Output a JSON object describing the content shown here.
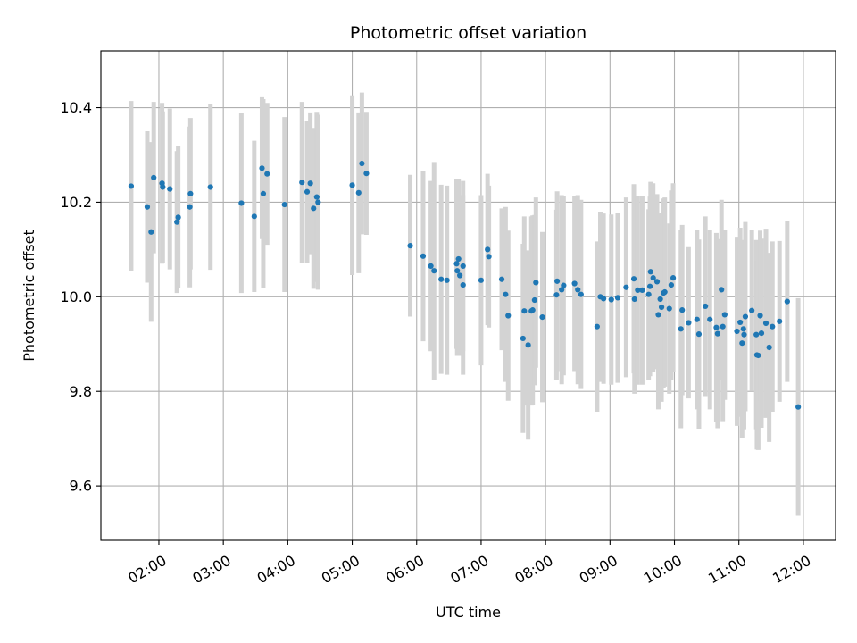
{
  "chart_data": {
    "type": "scatter",
    "title": "Photometric offset variation",
    "xlabel": "UTC time",
    "ylabel": "Photometric offset",
    "x_unit": "UTC hours",
    "xlim": [
      1.1,
      12.5
    ],
    "ylim": [
      9.485,
      10.52
    ],
    "x_ticks": [
      {
        "value": 2,
        "label": "02:00"
      },
      {
        "value": 3,
        "label": "03:00"
      },
      {
        "value": 4,
        "label": "04:00"
      },
      {
        "value": 5,
        "label": "05:00"
      },
      {
        "value": 6,
        "label": "06:00"
      },
      {
        "value": 7,
        "label": "07:00"
      },
      {
        "value": 8,
        "label": "08:00"
      },
      {
        "value": 9,
        "label": "09:00"
      },
      {
        "value": 10,
        "label": "10:00"
      },
      {
        "value": 11,
        "label": "11:00"
      },
      {
        "value": 12,
        "label": "12:00"
      }
    ],
    "y_ticks": [
      {
        "value": 9.6,
        "label": "9.6"
      },
      {
        "value": 9.8,
        "label": "9.8"
      },
      {
        "value": 10.0,
        "label": "10.0"
      },
      {
        "value": 10.2,
        "label": "10.2"
      },
      {
        "value": 10.4,
        "label": "10.4"
      }
    ],
    "grid": true,
    "colors": {
      "point": "#1f77b4",
      "errorbar": "#d3d3d3",
      "grid": "#b0b0b0"
    },
    "points": [
      [
        1.57,
        10.234,
        0.18
      ],
      [
        1.82,
        10.19,
        0.16
      ],
      [
        1.88,
        10.137,
        0.19
      ],
      [
        1.92,
        10.252,
        0.16
      ],
      [
        2.05,
        10.24,
        0.17
      ],
      [
        2.06,
        10.232,
        0.16
      ],
      [
        2.17,
        10.228,
        0.17
      ],
      [
        2.28,
        10.158,
        0.15
      ],
      [
        2.3,
        10.168,
        0.15
      ],
      [
        2.48,
        10.19,
        0.17
      ],
      [
        2.49,
        10.218,
        0.16
      ],
      [
        2.8,
        10.232,
        0.175
      ],
      [
        3.28,
        10.198,
        0.19
      ],
      [
        3.48,
        10.17,
        0.16
      ],
      [
        3.6,
        10.272,
        0.15
      ],
      [
        3.62,
        10.218,
        0.2
      ],
      [
        3.68,
        10.26,
        0.15
      ],
      [
        3.95,
        10.195,
        0.185
      ],
      [
        4.22,
        10.242,
        0.17
      ],
      [
        4.3,
        10.222,
        0.15
      ],
      [
        4.35,
        10.24,
        0.15
      ],
      [
        4.4,
        10.187,
        0.17
      ],
      [
        4.45,
        10.211,
        0.18
      ],
      [
        4.47,
        10.2,
        0.185
      ],
      [
        5.0,
        10.236,
        0.19
      ],
      [
        5.1,
        10.22,
        0.17
      ],
      [
        5.15,
        10.282,
        0.15
      ],
      [
        5.22,
        10.261,
        0.13
      ],
      [
        5.9,
        10.108,
        0.15
      ],
      [
        6.1,
        10.086,
        0.18
      ],
      [
        6.22,
        10.065,
        0.18
      ],
      [
        6.27,
        10.055,
        0.23
      ],
      [
        6.38,
        10.037,
        0.2
      ],
      [
        6.47,
        10.035,
        0.2
      ],
      [
        6.62,
        10.07,
        0.18
      ],
      [
        6.63,
        10.055,
        0.18
      ],
      [
        6.65,
        10.08,
        0.17
      ],
      [
        6.67,
        10.045,
        0.17
      ],
      [
        6.72,
        10.025,
        0.19
      ],
      [
        6.72,
        10.065,
        0.18
      ],
      [
        7.0,
        10.035,
        0.18
      ],
      [
        7.1,
        10.1,
        0.16
      ],
      [
        7.12,
        10.085,
        0.15
      ],
      [
        7.32,
        10.037,
        0.15
      ],
      [
        7.38,
        10.005,
        0.185
      ],
      [
        7.42,
        9.96,
        0.18
      ],
      [
        7.65,
        9.912,
        0.2
      ],
      [
        7.67,
        9.97,
        0.2
      ],
      [
        7.73,
        9.898,
        0.2
      ],
      [
        7.78,
        9.97,
        0.2
      ],
      [
        7.8,
        9.972,
        0.2
      ],
      [
        7.83,
        9.993,
        0.18
      ],
      [
        7.85,
        10.03,
        0.18
      ],
      [
        7.95,
        9.957,
        0.18
      ],
      [
        8.17,
        10.004,
        0.18
      ],
      [
        8.18,
        10.033,
        0.19
      ],
      [
        8.25,
        10.015,
        0.2
      ],
      [
        8.28,
        10.024,
        0.19
      ],
      [
        8.45,
        10.028,
        0.185
      ],
      [
        8.5,
        10.015,
        0.2
      ],
      [
        8.55,
        10.005,
        0.2
      ],
      [
        8.8,
        9.937,
        0.18
      ],
      [
        8.85,
        10.0,
        0.18
      ],
      [
        8.9,
        9.996,
        0.18
      ],
      [
        9.02,
        9.994,
        0.18
      ],
      [
        9.12,
        9.998,
        0.18
      ],
      [
        9.25,
        10.02,
        0.19
      ],
      [
        9.37,
        10.038,
        0.2
      ],
      [
        9.38,
        9.995,
        0.2
      ],
      [
        9.43,
        10.014,
        0.2
      ],
      [
        9.5,
        10.014,
        0.2
      ],
      [
        9.6,
        10.005,
        0.18
      ],
      [
        9.62,
        10.022,
        0.19
      ],
      [
        9.63,
        10.053,
        0.19
      ],
      [
        9.67,
        10.04,
        0.2
      ],
      [
        9.73,
        10.032,
        0.185
      ],
      [
        9.75,
        9.962,
        0.2
      ],
      [
        9.78,
        9.995,
        0.18
      ],
      [
        9.8,
        9.978,
        0.2
      ],
      [
        9.83,
        10.008,
        0.2
      ],
      [
        9.85,
        10.01,
        0.2
      ],
      [
        9.92,
        9.975,
        0.18
      ],
      [
        9.95,
        10.025,
        0.2
      ],
      [
        9.98,
        10.04,
        0.2
      ],
      [
        10.1,
        9.932,
        0.21
      ],
      [
        10.12,
        9.972,
        0.18
      ],
      [
        10.22,
        9.945,
        0.16
      ],
      [
        10.35,
        9.952,
        0.19
      ],
      [
        10.38,
        9.921,
        0.2
      ],
      [
        10.48,
        9.98,
        0.19
      ],
      [
        10.55,
        9.952,
        0.19
      ],
      [
        10.65,
        9.935,
        0.2
      ],
      [
        10.67,
        9.922,
        0.2
      ],
      [
        10.73,
        10.015,
        0.19
      ],
      [
        10.75,
        9.937,
        0.2
      ],
      [
        10.78,
        9.962,
        0.18
      ],
      [
        10.97,
        9.927,
        0.2
      ],
      [
        11.02,
        9.946,
        0.2
      ],
      [
        11.05,
        9.902,
        0.2
      ],
      [
        11.07,
        9.932,
        0.18
      ],
      [
        11.08,
        9.92,
        0.2
      ],
      [
        11.1,
        9.958,
        0.2
      ],
      [
        11.2,
        9.971,
        0.17
      ],
      [
        11.27,
        9.92,
        0.2
      ],
      [
        11.28,
        9.877,
        0.2
      ],
      [
        11.3,
        9.876,
        0.2
      ],
      [
        11.33,
        9.96,
        0.18
      ],
      [
        11.35,
        9.923,
        0.2
      ],
      [
        11.42,
        9.944,
        0.2
      ],
      [
        11.47,
        9.893,
        0.2
      ],
      [
        11.52,
        9.937,
        0.18
      ],
      [
        11.63,
        9.948,
        0.17
      ],
      [
        11.75,
        9.99,
        0.17
      ],
      [
        11.92,
        9.767,
        0.23
      ]
    ]
  }
}
